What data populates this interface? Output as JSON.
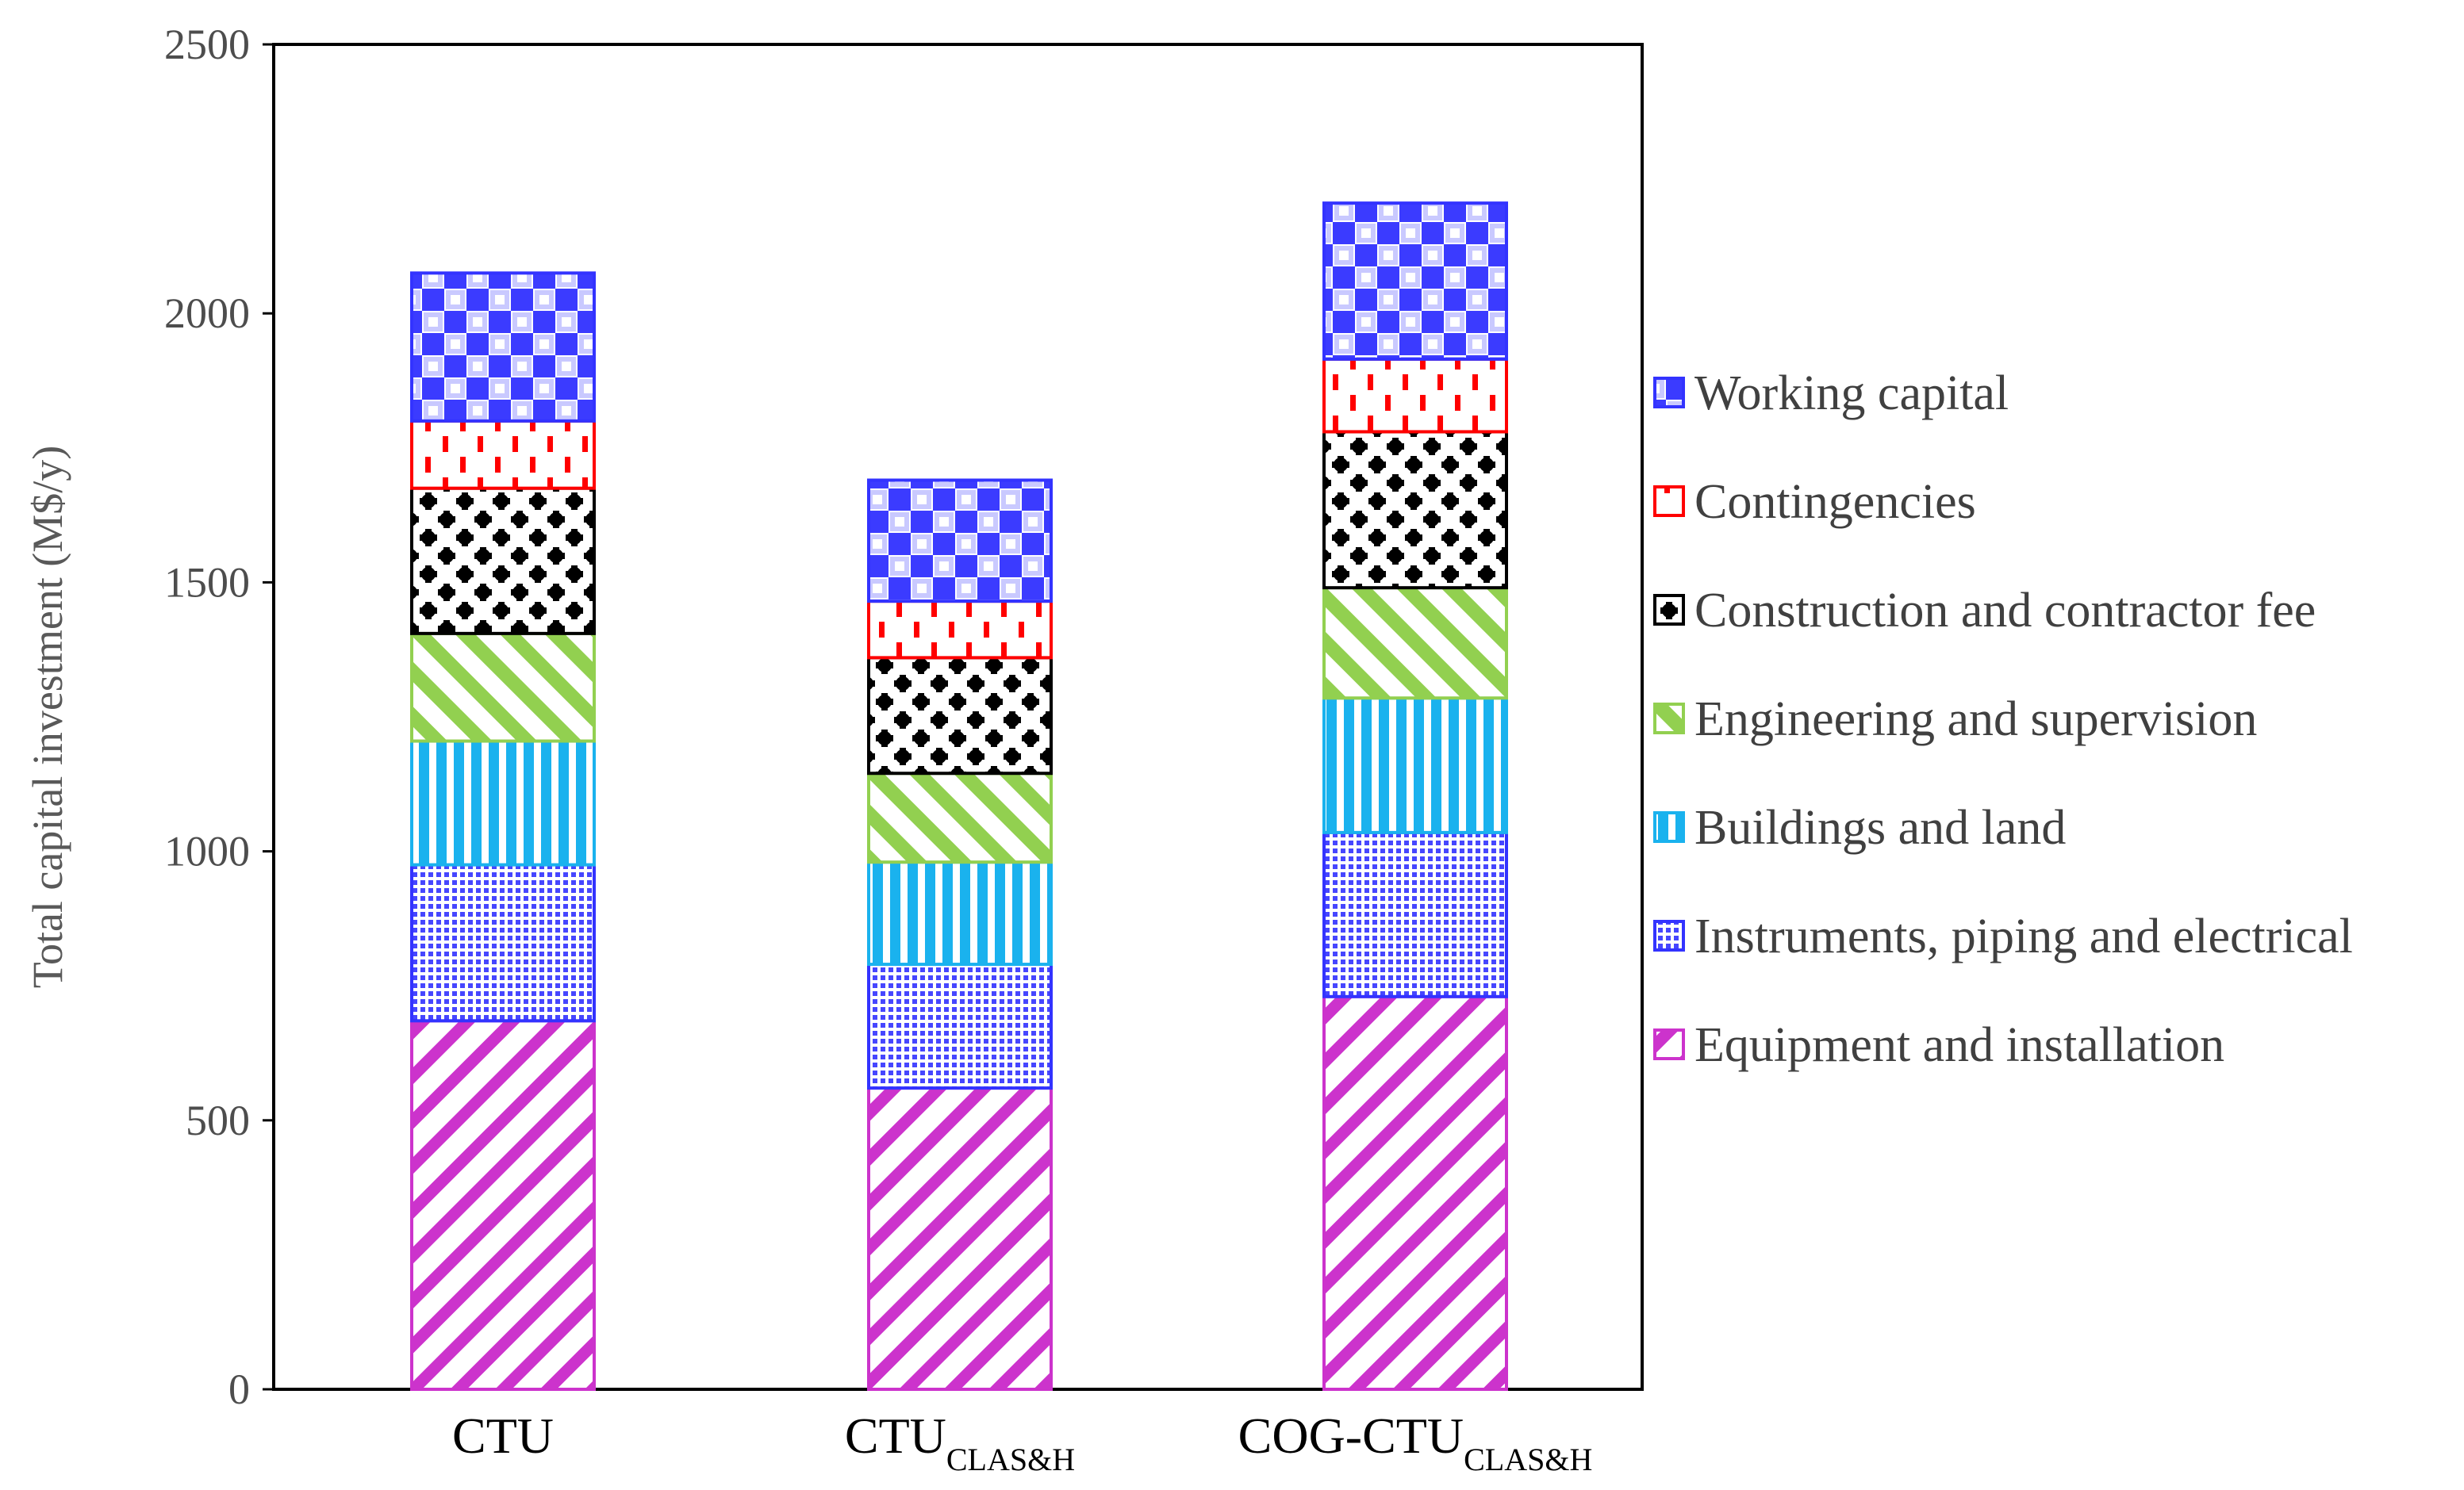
{
  "chart_data": {
    "type": "bar",
    "stacked": true,
    "title": "",
    "xlabel": "",
    "ylabel": "Total capital investment (M$/y)",
    "ylim": [
      0,
      2500
    ],
    "yticks": [
      0,
      500,
      1000,
      1500,
      2000,
      2500
    ],
    "grid": false,
    "legend_position": "right",
    "categories": [
      {
        "main": "CTU",
        "sub": ""
      },
      {
        "main": "CTU",
        "sub": "CLAS&H"
      },
      {
        "main": "COG-CTU",
        "sub": "CLAS&H"
      }
    ],
    "series": [
      {
        "name": "Equipment and installation",
        "values": [
          685,
          560,
          730
        ],
        "color": "#cc33cc",
        "pattern": "diagonal-down"
      },
      {
        "name": "Instruments, piping and electrical",
        "values": [
          290,
          230,
          305
        ],
        "color": "#3333ff",
        "pattern": "dotted-grid"
      },
      {
        "name": "Buildings and land",
        "values": [
          230,
          190,
          250
        ],
        "color": "#1ab2ee",
        "pattern": "vertical"
      },
      {
        "name": "Engineering and supervision",
        "values": [
          200,
          165,
          205
        ],
        "color": "#92d050",
        "pattern": "diagonal-up"
      },
      {
        "name": "Construction and contractor fee",
        "values": [
          270,
          215,
          290
        ],
        "color": "#000000",
        "pattern": "plus-dots"
      },
      {
        "name": "Contingencies",
        "values": [
          125,
          105,
          135
        ],
        "color": "#ff0000",
        "pattern": "dashes"
      },
      {
        "name": "Working capital",
        "values": [
          275,
          225,
          290
        ],
        "color": "#3333ff",
        "pattern": "checker"
      }
    ]
  }
}
